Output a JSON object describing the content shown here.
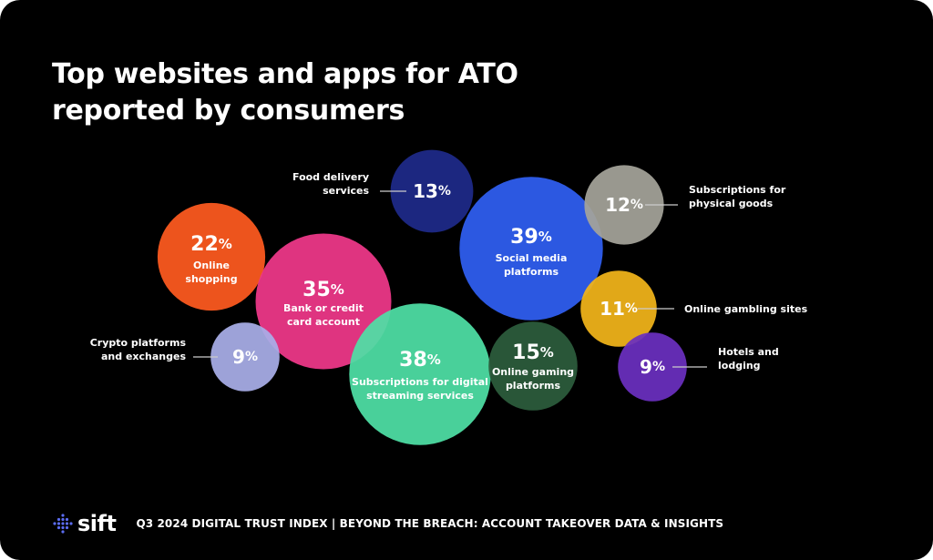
{
  "title_lines": [
    "Top websites and apps for ATO",
    "reported by consumers"
  ],
  "footer": {
    "brand": "sift",
    "text": "Q3 2024 DIGITAL TRUST INDEX | BEYOND THE BREACH: ACCOUNT TAKEOVER DATA & INSIGHTS"
  },
  "colors": {
    "background": "#000000",
    "text": "#ffffff",
    "leader": "#cccccc",
    "logo_dots": "#5b6cf0"
  },
  "chart_data": {
    "type": "bubble",
    "unit": "%",
    "items": [
      {
        "id": "food-delivery",
        "value": 13,
        "label": [
          "Food delivery",
          "services"
        ],
        "label_position": "outside-left",
        "color": "#1e2a8a"
      },
      {
        "id": "online-shopping",
        "value": 22,
        "label": [
          "Online",
          "shopping"
        ],
        "label_position": "inside",
        "color": "#ff5a1f"
      },
      {
        "id": "bank-card",
        "value": 35,
        "label": [
          "Bank or credit",
          "card account"
        ],
        "label_position": "inside",
        "color": "#f0388a"
      },
      {
        "id": "crypto",
        "value": 9,
        "label": [
          "Crypto platforms",
          "and exchanges"
        ],
        "label_position": "outside-left",
        "color": "#a9aee8"
      },
      {
        "id": "streaming",
        "value": 38,
        "label": [
          "Subscriptions for digital",
          "streaming services"
        ],
        "label_position": "inside",
        "color": "#4fe0a6"
      },
      {
        "id": "social-media",
        "value": 39,
        "label": [
          "Social media",
          "platforms"
        ],
        "label_position": "inside",
        "color": "#2f5ff2"
      },
      {
        "id": "physical-goods",
        "value": 12,
        "label": [
          "Subscriptions for",
          "physical goods"
        ],
        "label_position": "outside-right",
        "color": "#a5a49a"
      },
      {
        "id": "gaming",
        "value": 15,
        "label": [
          "Online gaming",
          "platforms"
        ],
        "label_position": "inside",
        "color": "#2c5d3c"
      },
      {
        "id": "gambling",
        "value": 11,
        "label": [
          "Online gambling sites"
        ],
        "label_position": "outside-right",
        "color": "#f2b51a"
      },
      {
        "id": "hotels",
        "value": 9,
        "label": [
          "Hotels and",
          "lodging"
        ],
        "label_position": "outside-right",
        "color": "#6a2fbf"
      }
    ]
  }
}
